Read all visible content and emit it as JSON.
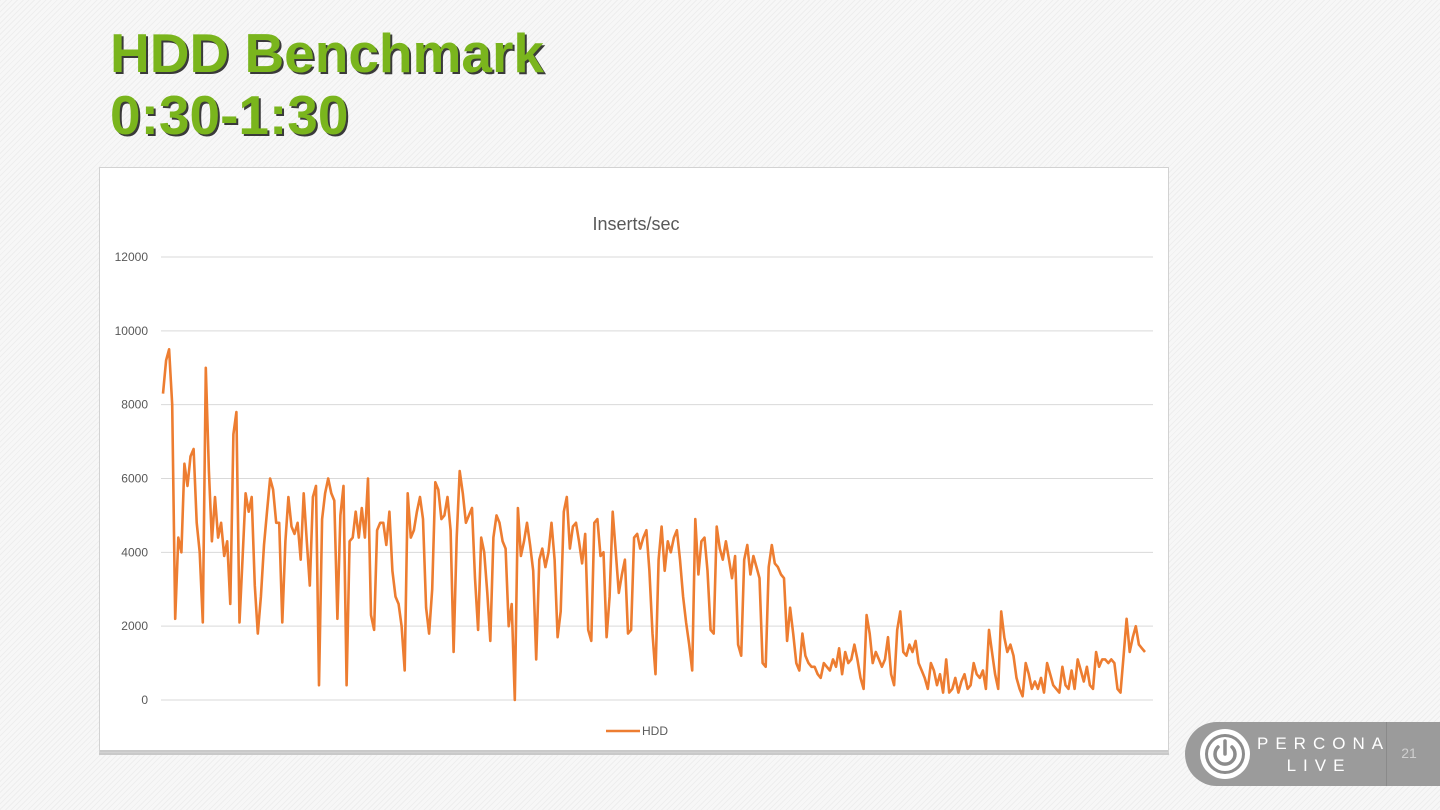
{
  "slide": {
    "title_line1": "HDD Benchmark",
    "title_line2": "0:30-1:30",
    "page_number": "21",
    "brand_line1": "PERCONA",
    "brand_line2": "LIVE",
    "title_color": "#7ab51d"
  },
  "chart_data": {
    "type": "line",
    "title": "Inserts/sec",
    "xlabel": "",
    "ylabel": "",
    "ylim": [
      0,
      12000
    ],
    "yticks": [
      0,
      2000,
      4000,
      6000,
      8000,
      10000,
      12000
    ],
    "ytick_labels": [
      "0",
      "2000",
      "4000",
      "6000",
      "8000",
      "10000",
      "12000"
    ],
    "grid": true,
    "legend_position": "bottom",
    "series": [
      {
        "name": "HDD",
        "color": "#ed7d31",
        "values": [
          8300,
          9200,
          9500,
          8000,
          2200,
          4400,
          4000,
          6400,
          5800,
          6600,
          6800,
          4800,
          4000,
          2100,
          9000,
          6200,
          4300,
          5500,
          4400,
          4800,
          3900,
          4300,
          2600,
          7200,
          7800,
          2100,
          3800,
          5600,
          5100,
          5500,
          3100,
          1800,
          2800,
          4200,
          5100,
          6000,
          5700,
          4800,
          4800,
          2100,
          4300,
          5500,
          4700,
          4500,
          4800,
          3800,
          5600,
          4300,
          3100,
          5500,
          5800,
          400,
          4900,
          5600,
          6000,
          5600,
          5400,
          2200,
          5000,
          5800,
          400,
          4300,
          4400,
          5100,
          4400,
          5200,
          4400,
          6000,
          2300,
          1900,
          4600,
          4800,
          4800,
          4200,
          5100,
          3500,
          2800,
          2600,
          2000,
          800,
          5600,
          4400,
          4600,
          5100,
          5500,
          4900,
          2500,
          1800,
          3000,
          5900,
          5700,
          4900,
          5000,
          5500,
          4600,
          1300,
          4400,
          6200,
          5600,
          4800,
          5000,
          5200,
          3300,
          1900,
          4400,
          4000,
          2900,
          1600,
          4400,
          5000,
          4800,
          4300,
          4100,
          2000,
          2600,
          0,
          5200,
          3900,
          4300,
          4800,
          4200,
          3500,
          1100,
          3800,
          4100,
          3600,
          4000,
          4800,
          3800,
          1700,
          2400,
          5100,
          5500,
          4100,
          4700,
          4800,
          4300,
          3700,
          4500,
          1900,
          1600,
          4800,
          4900,
          3900,
          4000,
          1700,
          2800,
          5100,
          4000,
          2900,
          3400,
          3800,
          1800,
          1900,
          4400,
          4500,
          4100,
          4400,
          4600,
          3500,
          1800,
          700,
          3800,
          4700,
          3500,
          4300,
          4000,
          4400,
          4600,
          3800,
          2800,
          2100,
          1500,
          800,
          4900,
          3400,
          4300,
          4400,
          3500,
          1900,
          1800,
          4700,
          4100,
          3800,
          4300,
          3800,
          3300,
          3900,
          1500,
          1200,
          3800,
          4200,
          3400,
          3900,
          3600,
          3300,
          1000,
          900,
          3600,
          4200,
          3700,
          3600,
          3400,
          3300,
          1600,
          2500,
          1800,
          1000,
          800,
          1800,
          1200,
          1000,
          900,
          900,
          700,
          600,
          1000,
          900,
          800,
          1100,
          900,
          1400,
          700,
          1300,
          1000,
          1100,
          1500,
          1100,
          600,
          300,
          2300,
          1800,
          1000,
          1300,
          1100,
          900,
          1100,
          1700,
          700,
          400,
          1900,
          2400,
          1300,
          1200,
          1500,
          1300,
          1600,
          1000,
          800,
          600,
          300,
          1000,
          800,
          400,
          700,
          200,
          1100,
          200,
          300,
          600,
          200,
          500,
          700,
          300,
          400,
          1000,
          700,
          600,
          800,
          300,
          1900,
          1300,
          700,
          300,
          2400,
          1700,
          1300,
          1500,
          1200,
          600,
          300,
          100,
          1000,
          700,
          300,
          500,
          300,
          600,
          200,
          1000,
          700,
          400,
          300,
          200,
          900,
          400,
          300,
          800,
          300,
          1100,
          800,
          500,
          900,
          400,
          300,
          1300,
          900,
          1100,
          1100,
          1000,
          1100,
          1000,
          300,
          200,
          1200,
          2200,
          1300,
          1700,
          2000,
          1500,
          1400,
          1300
        ]
      }
    ]
  }
}
